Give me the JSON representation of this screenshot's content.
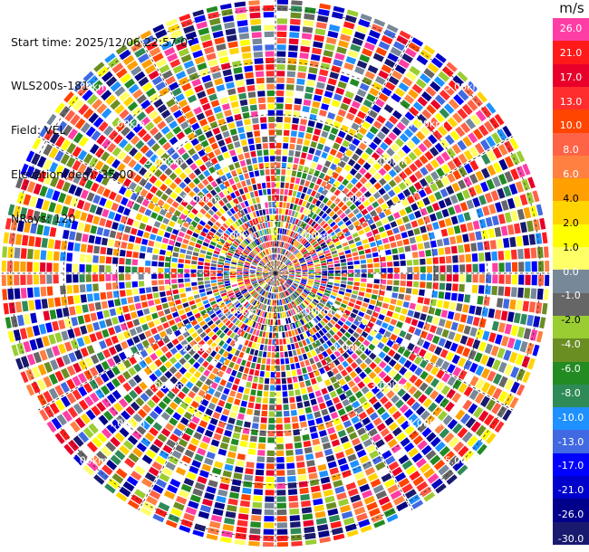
{
  "info": {
    "start_time": "Start time: 2025/12/06 22:57:07",
    "instrument": "WLS200s-181",
    "field": "Field: VEL",
    "elevation": "Elevation(deg): 35.00",
    "nrays": "NRays: 120"
  },
  "chart_data": {
    "type": "heatmap",
    "projection": "polar-ppi",
    "field": "VEL",
    "elevation_deg": 35.0,
    "n_rays": 120,
    "range_ring_labels": [
      "1.00km",
      "2.00km",
      "3.00km",
      "4.00km",
      "5.00km"
    ],
    "range_rings_km": [
      1,
      2,
      3,
      4,
      5
    ],
    "radial_lines_deg": [
      0,
      30,
      60,
      90,
      120,
      150,
      180,
      210,
      240,
      270,
      300,
      330
    ],
    "colorbar": {
      "unit": "m/s",
      "tick_labels": [
        "26.0",
        "21.0",
        "17.0",
        "13.0",
        "10.0",
        "8.0",
        "6.0",
        "4.0",
        "2.0",
        "1.0",
        "0.0",
        "-1.0",
        "-2.0",
        "-4.0",
        "-6.0",
        "-8.0",
        "-10.0",
        "-13.0",
        "-17.0",
        "-21.0",
        "-26.0",
        "-30.0"
      ],
      "colors": [
        "#ff3ea5",
        "#ff1a1a",
        "#e8002a",
        "#ff2d2d",
        "#ff4500",
        "#ff6347",
        "#ff8040",
        "#ff9f00",
        "#ffd400",
        "#ffff00",
        "#ffff66",
        "#778899",
        "#666666",
        "#9acd32",
        "#6b8e23",
        "#228b22",
        "#2e8b57",
        "#1e90ff",
        "#4169e1",
        "#0000ff",
        "#0000cd",
        "#00008b",
        "#191970"
      ]
    }
  }
}
